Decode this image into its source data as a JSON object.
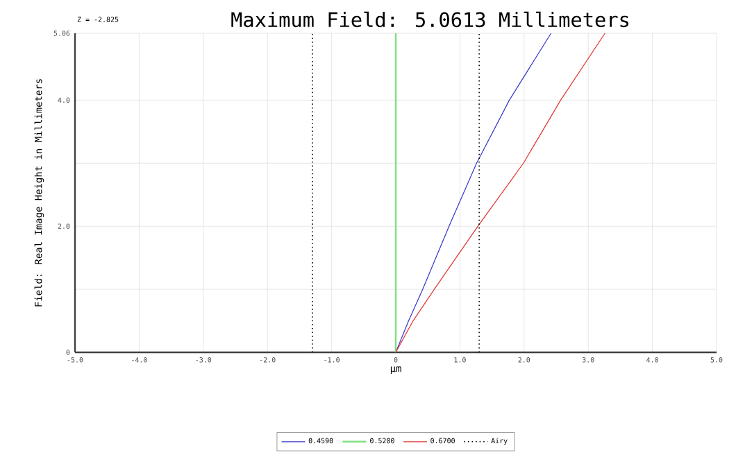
{
  "chart_data": {
    "type": "line",
    "title": "Maximum Field: 5.0613 Millimeters",
    "subtitle": "Z = -2.825",
    "xlabel": "μm",
    "ylabel": "Field: Real Image Height in Millimeters",
    "xlim": [
      -5,
      5
    ],
    "ylim": [
      0,
      5.06
    ],
    "xticks": [
      {
        "value": -5,
        "label": "-5.0"
      },
      {
        "value": -4,
        "label": "-4.0"
      },
      {
        "value": -3,
        "label": "-3.0"
      },
      {
        "value": -2,
        "label": "-2.0"
      },
      {
        "value": -1,
        "label": "-1.0"
      },
      0,
      {
        "value": 1,
        "label": "1.0"
      },
      {
        "value": 2,
        "label": "2.0"
      },
      {
        "value": 3,
        "label": "3.0"
      },
      {
        "value": 4,
        "label": "4.0"
      },
      {
        "value": 5,
        "label": "5.0"
      }
    ],
    "yticks": [
      0,
      {
        "value": 1,
        "label": null
      },
      {
        "value": 2,
        "label": "2.0"
      },
      {
        "value": 3,
        "label": null
      },
      {
        "value": 4,
        "label": "4.0"
      },
      5.06
    ],
    "grid": true,
    "legend": "bottom",
    "marker": "none",
    "series": [
      {
        "name": "0.4590",
        "color": "#3535c8",
        "x": [
          0,
          0.2,
          0.42,
          0.83,
          1.26,
          1.77,
          2.42
        ],
        "values": [
          0,
          0.5,
          1,
          2,
          3,
          4,
          5.06
        ]
      },
      {
        "name": "0.5200",
        "color": "#7fe07f",
        "x": [
          0,
          0
        ],
        "values": [
          0,
          5.06
        ]
      },
      {
        "name": "0.6700",
        "color": "#e03030",
        "x": [
          0,
          0.27,
          0.6,
          1.28,
          1.99,
          2.57,
          3.26
        ],
        "values": [
          0,
          0.5,
          1,
          2,
          3,
          4,
          5.06
        ]
      }
    ],
    "ref_lines": [
      {
        "axis": "x",
        "value": -1.3,
        "label": "Airy",
        "color": "#000000",
        "line_style": "dotted"
      },
      {
        "axis": "x",
        "value": 1.3,
        "label": null,
        "color": "#000000",
        "line_style": "dotted"
      }
    ]
  }
}
